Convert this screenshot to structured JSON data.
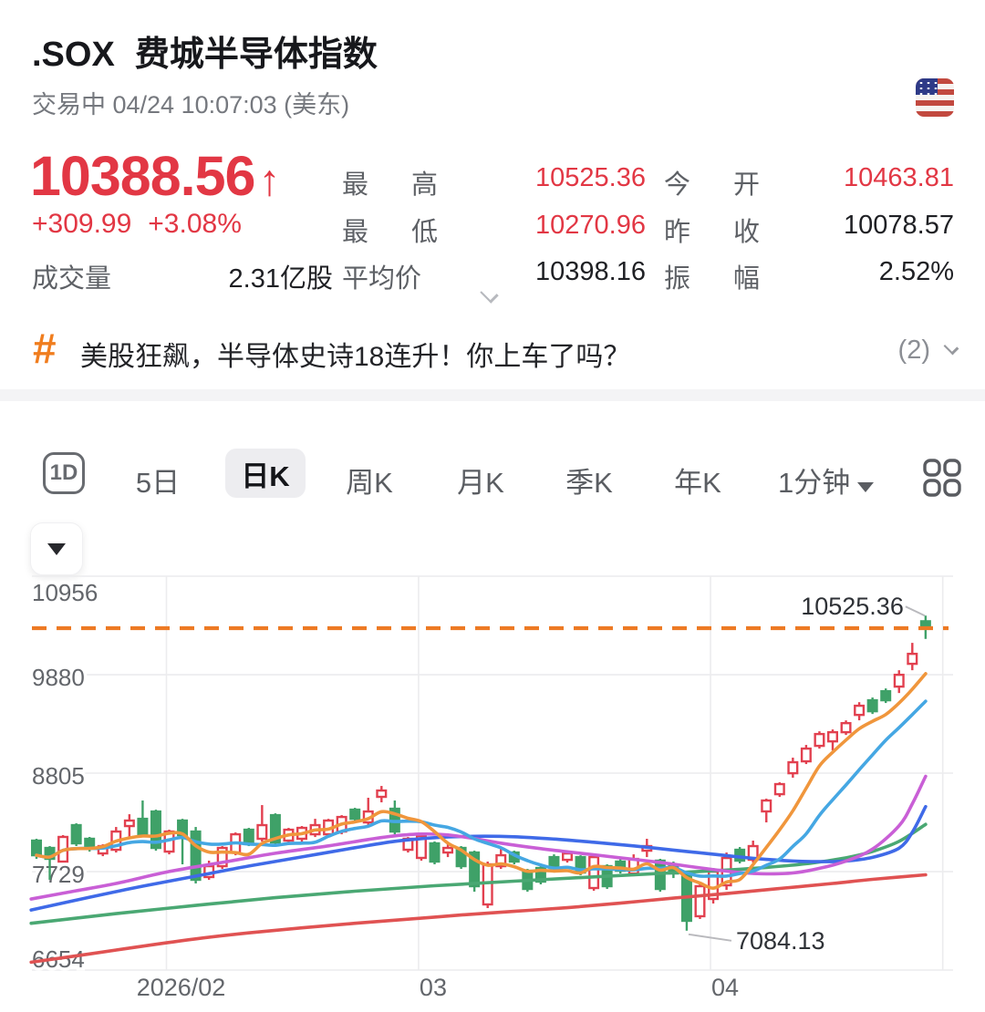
{
  "header": {
    "symbol": ".SOX",
    "name": "费城半导体指数",
    "status_line": "交易中 04/24 10:07:03 (美东)",
    "flag_icon": "us-flag"
  },
  "quote": {
    "price": "10388.56",
    "arrow": "↑",
    "change": "+309.99",
    "change_pct": "+3.08%",
    "volume_label": "成交量",
    "volume_value": "2.31亿股",
    "avg_label": "平均价",
    "avg_value": "10398.16",
    "amplitude_label": "振幅",
    "amplitude_value": "2.52%",
    "high_label": "最高",
    "high_value": "10525.36",
    "low_label": "最低",
    "low_value": "10270.96",
    "open_label": "今开",
    "open_value": "10463.81",
    "prev_close_label": "昨收",
    "prev_close_value": "10078.57"
  },
  "banner": {
    "hash_icon": "#",
    "text": "美股狂飙，半导体史诗18连升！你上车了吗？",
    "count": "(2)"
  },
  "tabs": {
    "items": [
      "1D",
      "5日",
      "日K",
      "周K",
      "月K",
      "季K",
      "年K",
      "1分钟"
    ],
    "selected": "日K",
    "grid_icon": "layout-grid"
  },
  "colors": {
    "up": "#e2404f",
    "down": "#3fa168",
    "price_red": "#e23744",
    "accent_orange": "#f07d1e"
  },
  "chart_data": {
    "type": "candlestick",
    "title": "日K",
    "y_axis": {
      "ticks": [
        10956,
        9880,
        8805,
        7729,
        6654
      ],
      "grid": true
    },
    "x_axis": {
      "labels": [
        {
          "text": "2026/02",
          "index": 10
        },
        {
          "text": "03",
          "index": 29
        },
        {
          "text": "04",
          "index": 51
        },
        {
          "text": "",
          "index": 68.5
        }
      ]
    },
    "price_line": {
      "value": 10388.56,
      "color": "#ed7a24",
      "style": "dashed"
    },
    "annotations": [
      {
        "text": "10525.36",
        "candle": 67,
        "anchor": "high"
      },
      {
        "text": "7084.13",
        "candle": 49,
        "anchor": "low"
      }
    ],
    "candles": [
      [
        8068,
        7908,
        7869,
        8088
      ],
      [
        7988,
        7869,
        7640,
        8008
      ],
      [
        7839,
        8108,
        7829,
        8128
      ],
      [
        8237,
        8038,
        8008,
        8257
      ],
      [
        8088,
        7988,
        7948,
        8108
      ],
      [
        7928,
        8008,
        7898,
        8028
      ],
      [
        7968,
        8167,
        7938,
        8217
      ],
      [
        8227,
        8287,
        8088,
        8356
      ],
      [
        8306,
        8137,
        8107,
        8506
      ],
      [
        8386,
        7988,
        7958,
        8406
      ],
      [
        7948,
        8167,
        7918,
        8187
      ],
      [
        8287,
        8128,
        7809,
        8306
      ],
      [
        8167,
        7640,
        7600,
        8217
      ],
      [
        7670,
        7789,
        7640,
        7849
      ],
      [
        7789,
        7988,
        7759,
        8008
      ],
      [
        7938,
        8137,
        7908,
        8157
      ],
      [
        8187,
        8038,
        8008,
        8207
      ],
      [
        8088,
        8237,
        8058,
        8456
      ],
      [
        8346,
        8048,
        8018,
        8366
      ],
      [
        8068,
        8187,
        8038,
        8207
      ],
      [
        8088,
        8207,
        8058,
        8227
      ],
      [
        8137,
        8237,
        8107,
        8306
      ],
      [
        8137,
        8287,
        8107,
        8306
      ],
      [
        8167,
        8326,
        8137,
        8346
      ],
      [
        8406,
        8306,
        8276,
        8426
      ],
      [
        8267,
        8386,
        8237,
        8536
      ],
      [
        8546,
        8615,
        8486,
        8665
      ],
      [
        8416,
        8167,
        8137,
        8506
      ],
      [
        7968,
        8088,
        7938,
        8107
      ],
      [
        7879,
        8118,
        7849,
        8137
      ],
      [
        8038,
        7839,
        7809,
        8058
      ],
      [
        7938,
        7988,
        7888,
        8038
      ],
      [
        7988,
        7789,
        7759,
        8008
      ],
      [
        7938,
        7570,
        7510,
        7958
      ],
      [
        7371,
        7809,
        7331,
        7839
      ],
      [
        7789,
        7908,
        7759,
        7978
      ],
      [
        7938,
        7839,
        7809,
        7958
      ],
      [
        7739,
        7540,
        7510,
        7759
      ],
      [
        7769,
        7620,
        7590,
        7789
      ],
      [
        7888,
        7769,
        7719,
        7918
      ],
      [
        7858,
        7928,
        7828,
        7948
      ],
      [
        7888,
        7719,
        7689,
        7908
      ],
      [
        7550,
        7888,
        7520,
        7908
      ],
      [
        7789,
        7570,
        7540,
        7809
      ],
      [
        7839,
        7739,
        7709,
        7888
      ],
      [
        7709,
        7868,
        7679,
        7918
      ],
      [
        7958,
        8008,
        7888,
        8088
      ],
      [
        7849,
        7540,
        7510,
        7869
      ],
      [
        7789,
        7709,
        7659,
        7839
      ],
      [
        7709,
        7192,
        7084.13,
        7719
      ],
      [
        7242,
        7570,
        7212,
        7600
      ],
      [
        7431,
        7729,
        7381,
        7769
      ],
      [
        7580,
        7878,
        7530,
        7938
      ],
      [
        7968,
        7849,
        7819,
        7998
      ],
      [
        7859,
        8008,
        7829,
        8068
      ],
      [
        8387,
        8506,
        8267,
        8526
      ],
      [
        8575,
        8685,
        8545,
        8705
      ],
      [
        8804,
        8924,
        8755,
        8974
      ],
      [
        8934,
        9073,
        8904,
        9113
      ],
      [
        9103,
        9232,
        9073,
        9262
      ],
      [
        9152,
        9252,
        9053,
        9282
      ],
      [
        9252,
        9351,
        9222,
        9381
      ],
      [
        9441,
        9541,
        9382,
        9580
      ],
      [
        9601,
        9481,
        9451,
        9631
      ],
      [
        9700,
        9601,
        9571,
        9730
      ],
      [
        9750,
        9879,
        9680,
        9929
      ],
      [
        9999,
        10108,
        9929,
        10228
      ],
      [
        10463.81,
        10388.56,
        10270.96,
        10525.36
      ]
    ],
    "ma_computed": [
      {
        "name": "MA5",
        "window": 5,
        "color": "#f0963c"
      },
      {
        "name": "MA10",
        "window": 10,
        "color": "#45a7e3"
      }
    ],
    "ma_series": [
      {
        "name": "MA120",
        "color": "#e05252",
        "points": [
          [
            -0.4,
            6740
          ],
          [
            4,
            6830
          ],
          [
            8,
            6915
          ],
          [
            12,
            6995
          ],
          [
            16,
            7060
          ],
          [
            20,
            7115
          ],
          [
            24,
            7165
          ],
          [
            28,
            7210
          ],
          [
            32,
            7255
          ],
          [
            36,
            7295
          ],
          [
            40,
            7335
          ],
          [
            44,
            7385
          ],
          [
            48,
            7440
          ],
          [
            52,
            7490
          ],
          [
            56,
            7545
          ],
          [
            60,
            7600
          ],
          [
            63,
            7645
          ],
          [
            67,
            7695
          ]
        ]
      },
      {
        "name": "MA60",
        "color": "#4aa873",
        "points": [
          [
            -0.4,
            7165
          ],
          [
            6,
            7270
          ],
          [
            12,
            7360
          ],
          [
            18,
            7445
          ],
          [
            24,
            7515
          ],
          [
            30,
            7575
          ],
          [
            36,
            7625
          ],
          [
            42,
            7672
          ],
          [
            47,
            7710
          ],
          [
            51,
            7738
          ],
          [
            55,
            7775
          ],
          [
            58,
            7815
          ],
          [
            61,
            7880
          ],
          [
            63,
            7950
          ],
          [
            65,
            8060
          ],
          [
            67,
            8245
          ]
        ]
      },
      {
        "name": "MA30",
        "color": "#3f6ae8",
        "points": [
          [
            -0.4,
            7310
          ],
          [
            4,
            7450
          ],
          [
            8,
            7570
          ],
          [
            12,
            7680
          ],
          [
            16,
            7790
          ],
          [
            20,
            7890
          ],
          [
            24,
            7990
          ],
          [
            27,
            8060
          ],
          [
            30,
            8100
          ],
          [
            33,
            8115
          ],
          [
            36,
            8110
          ],
          [
            39,
            8085
          ],
          [
            42,
            8050
          ],
          [
            45,
            8010
          ],
          [
            48,
            7965
          ],
          [
            51,
            7920
          ],
          [
            54,
            7875
          ],
          [
            57,
            7845
          ],
          [
            59,
            7838
          ],
          [
            61,
            7845
          ],
          [
            63,
            7885
          ],
          [
            65,
            7985
          ],
          [
            66,
            8160
          ],
          [
            67,
            8440
          ]
        ]
      },
      {
        "name": "MA20",
        "color": "#c95fd6",
        "points": [
          [
            -0.4,
            7430
          ],
          [
            3,
            7520
          ],
          [
            6,
            7600
          ],
          [
            10,
            7730
          ],
          [
            14,
            7830
          ],
          [
            18,
            7930
          ],
          [
            22,
            8010
          ],
          [
            25,
            8080
          ],
          [
            27,
            8120
          ],
          [
            29,
            8140
          ],
          [
            31,
            8130
          ],
          [
            33,
            8090
          ],
          [
            35,
            8040
          ],
          [
            38,
            7980
          ],
          [
            41,
            7930
          ],
          [
            44,
            7880
          ],
          [
            47,
            7830
          ],
          [
            50,
            7770
          ],
          [
            53,
            7720
          ],
          [
            55,
            7705
          ],
          [
            57,
            7715
          ],
          [
            59,
            7765
          ],
          [
            61,
            7845
          ],
          [
            63,
            7975
          ],
          [
            65,
            8230
          ],
          [
            66,
            8470
          ],
          [
            67,
            8770
          ]
        ]
      }
    ]
  }
}
